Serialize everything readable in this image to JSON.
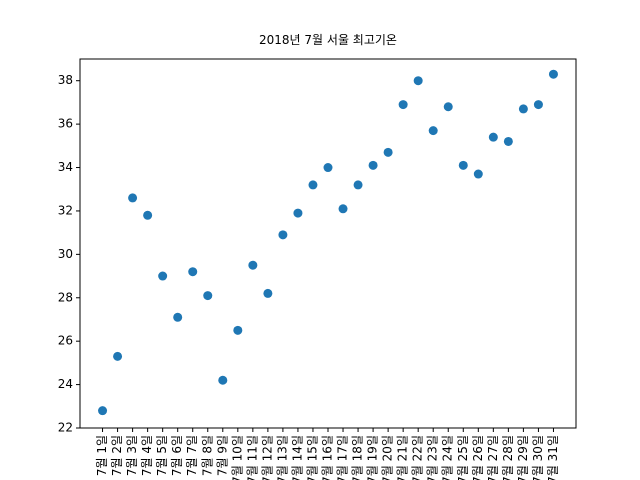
{
  "chart_data": {
    "type": "scatter",
    "title": "2018년 7월 서울 최고기온",
    "categories": [
      "7월 1일",
      "7월 2일",
      "7월 3일",
      "7월 4일",
      "7월 5일",
      "7월 6일",
      "7월 7일",
      "7월 8일",
      "7월 9일",
      "7월 10일",
      "7월 11일",
      "7월 12일",
      "7월 13일",
      "7월 14일",
      "7월 15일",
      "7월 16일",
      "7월 17일",
      "7월 18일",
      "7월 19일",
      "7월 20일",
      "7월 21일",
      "7월 22일",
      "7월 23일",
      "7월 24일",
      "7월 25일",
      "7월 26일",
      "7월 27일",
      "7월 28일",
      "7월 29일",
      "7월 30일",
      "7월 31일"
    ],
    "values": [
      22.8,
      25.3,
      32.6,
      31.8,
      29.0,
      27.1,
      29.2,
      28.1,
      24.2,
      26.5,
      29.5,
      28.2,
      30.9,
      31.9,
      33.2,
      34.0,
      32.1,
      33.2,
      34.1,
      34.7,
      36.9,
      38.0,
      35.7,
      36.8,
      34.1,
      33.7,
      35.4,
      35.2,
      36.7,
      36.9,
      38.3
    ],
    "color": "#1f77b4",
    "ylim": [
      22,
      39
    ],
    "yticks": [
      22,
      24,
      26,
      28,
      30,
      32,
      34,
      36,
      38
    ]
  }
}
